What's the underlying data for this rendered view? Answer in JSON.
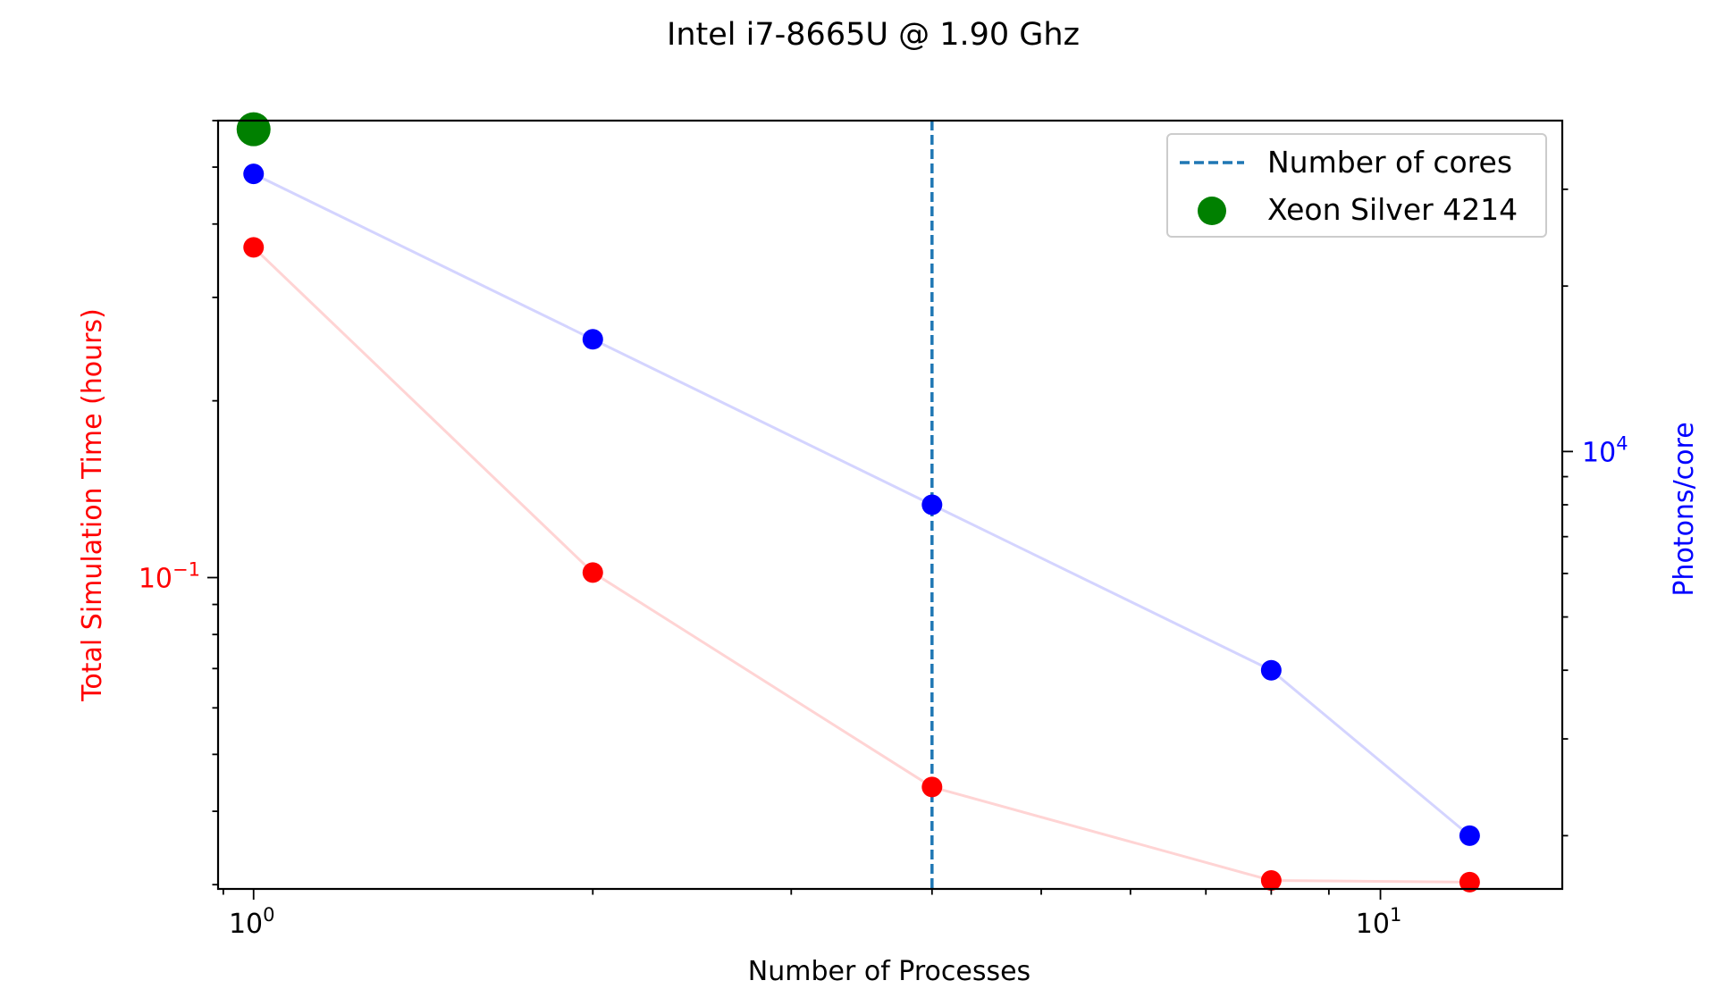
{
  "chart_data": {
    "type": "line",
    "title": "Intel i7-8665U @ 1.90 Ghz",
    "xlabel": "Number of Processes",
    "ylabel_left": "Total Simulation Time (hours)",
    "ylabel_right": "Photons/core",
    "x_scale": "log",
    "y_left_scale": "log",
    "y_right_scale": "log",
    "xlim": [
      0.93,
      14.5
    ],
    "ylim_left": [
      0.0295,
      0.6
    ],
    "ylim_right": [
      1600,
      40000
    ],
    "x_ticks": [
      {
        "value": 1,
        "base": "10",
        "exp": "0"
      },
      {
        "value": 10,
        "base": "10",
        "exp": "1"
      }
    ],
    "y_left_ticks": [
      {
        "value": 0.1,
        "base": "10",
        "exp": "−1"
      }
    ],
    "y_right_ticks": [
      {
        "value": 10000,
        "base": "10",
        "exp": "4"
      }
    ],
    "colors": {
      "left": "#ff0000",
      "right": "#0000ff",
      "left_line": "#ffd4d4",
      "right_line": "#d4d4ff",
      "cores": "#1f77b4",
      "xeon": "#008000"
    },
    "series": [
      {
        "axis": "left",
        "x": [
          1,
          2,
          4,
          8,
          12
        ],
        "y": [
          0.365,
          0.102,
          0.044,
          0.0305,
          0.0303
        ]
      },
      {
        "axis": "right",
        "x": [
          1,
          2,
          4,
          8,
          12
        ],
        "y": [
          32000,
          16000,
          8000,
          4000,
          2000
        ]
      }
    ],
    "cores_line": {
      "x": 4
    },
    "xeon_point": {
      "x": 1,
      "y_left": 0.58
    },
    "legend": {
      "position": "top-right",
      "entries": [
        {
          "label": "Number of cores",
          "marker": "dashed-line"
        },
        {
          "label": "Xeon Silver 4214",
          "marker": "green-dot"
        }
      ]
    }
  }
}
